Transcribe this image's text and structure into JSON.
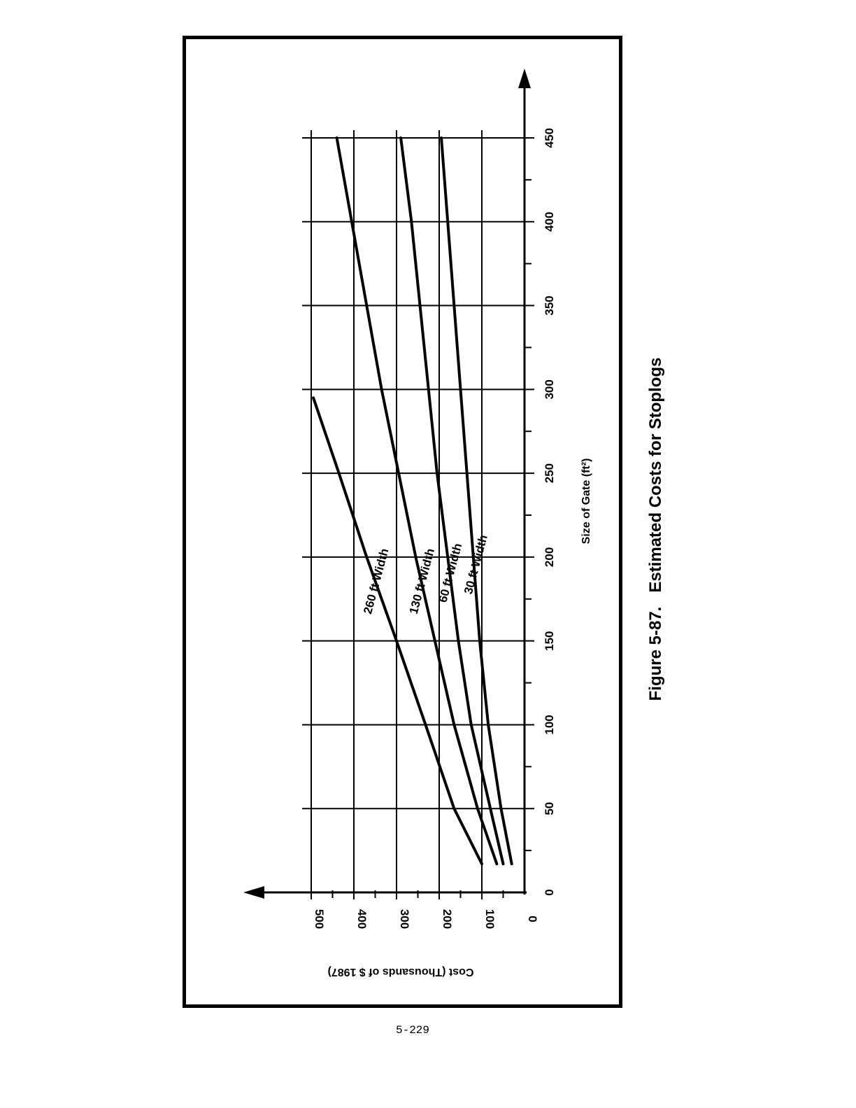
{
  "caption": "Figure 5-87.   Estimated Costs for Stoplogs",
  "page_number": "5-229",
  "chart_data": {
    "type": "line",
    "title": "Figure 5-87.   Estimated Costs for Stoplogs",
    "xlabel": "Size of Gate (ft²)",
    "ylabel": "Cost (Thousands of $ 1987)",
    "xlim": [
      0,
      450
    ],
    "ylim": [
      0,
      500
    ],
    "x_ticks": [
      "0",
      "50",
      "100",
      "150",
      "200",
      "250",
      "300",
      "350",
      "400",
      "450"
    ],
    "y_ticks": [
      "0",
      "100",
      "200",
      "300",
      "400",
      "500"
    ],
    "grid": true,
    "orientation": "rotated 90° counter-clockwise on page",
    "series": [
      {
        "name": "260 ft Width",
        "x": [
          17,
          50,
          100,
          150,
          200,
          250,
          295
        ],
        "y": [
          100,
          165,
          232,
          300,
          370,
          435,
          495
        ]
      },
      {
        "name": "130 ft Width",
        "x": [
          17,
          50,
          100,
          150,
          200,
          250,
          300,
          350,
          400,
          450
        ],
        "y": [
          65,
          110,
          165,
          210,
          255,
          295,
          335,
          370,
          405,
          440
        ]
      },
      {
        "name": "60 ft Width",
        "x": [
          17,
          50,
          100,
          150,
          200,
          250,
          300,
          350,
          400,
          450
        ],
        "y": [
          50,
          80,
          125,
          155,
          180,
          205,
          225,
          245,
          265,
          290
        ]
      },
      {
        "name": "30 ft Width",
        "x": [
          17,
          50,
          100,
          150,
          200,
          250,
          300,
          350,
          400,
          450
        ],
        "y": [
          30,
          55,
          85,
          105,
          120,
          135,
          150,
          165,
          180,
          195
        ]
      }
    ]
  }
}
